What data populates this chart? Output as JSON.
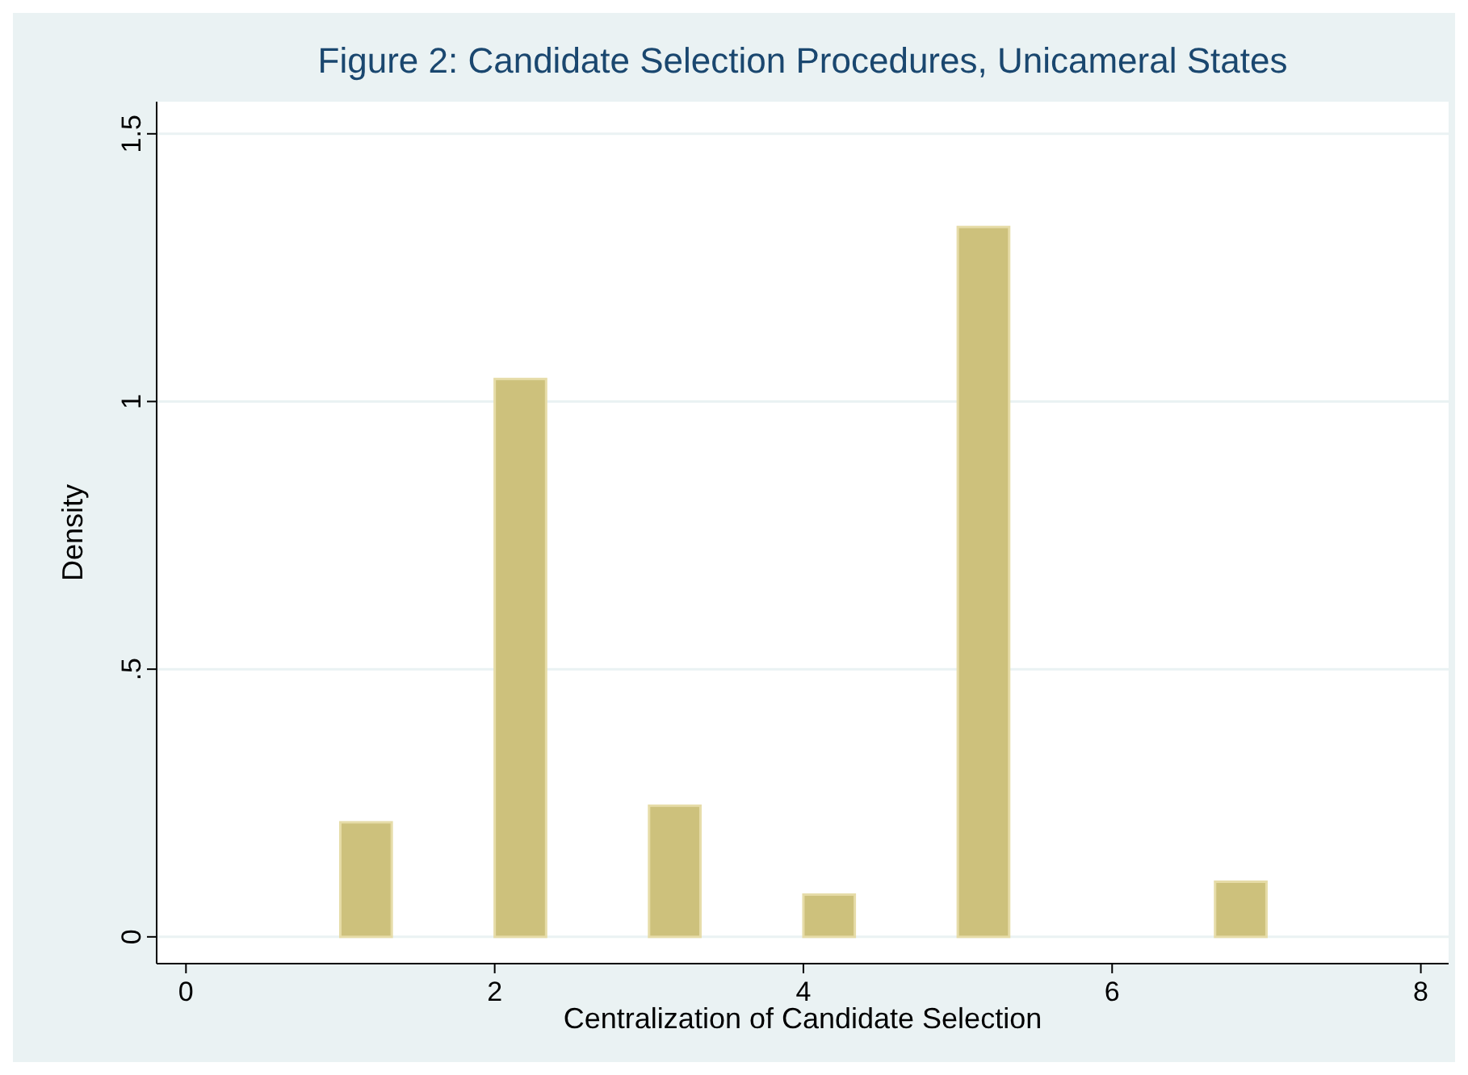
{
  "chart_data": {
    "type": "histogram",
    "title": "Figure 2: Candidate Selection Procedures, Unicameral States",
    "xlabel": "Centralization of Candidate Selection",
    "ylabel": "Density",
    "bins": [
      1,
      1.333,
      1.667,
      2,
      2.333,
      2.667,
      3,
      3.333,
      3.667,
      4,
      4.333,
      4.667,
      5,
      5.333,
      5.667,
      6,
      6.333,
      6.667,
      7
    ],
    "values": [
      0.214,
      0,
      0,
      1.042,
      0,
      0,
      0.245,
      0,
      0,
      0.079,
      0,
      0,
      1.326,
      0,
      0,
      0,
      0,
      0.103
    ],
    "color": "#cdc17c",
    "xlim": [
      -0.19,
      8.18
    ],
    "xticks": [
      0,
      2,
      4,
      6,
      8
    ],
    "ylim": [
      -0.05,
      1.56
    ],
    "yticks": [
      0,
      {
        "value": 0.5,
        "label": ".5"
      },
      1,
      1.5
    ],
    "grid": "y"
  }
}
